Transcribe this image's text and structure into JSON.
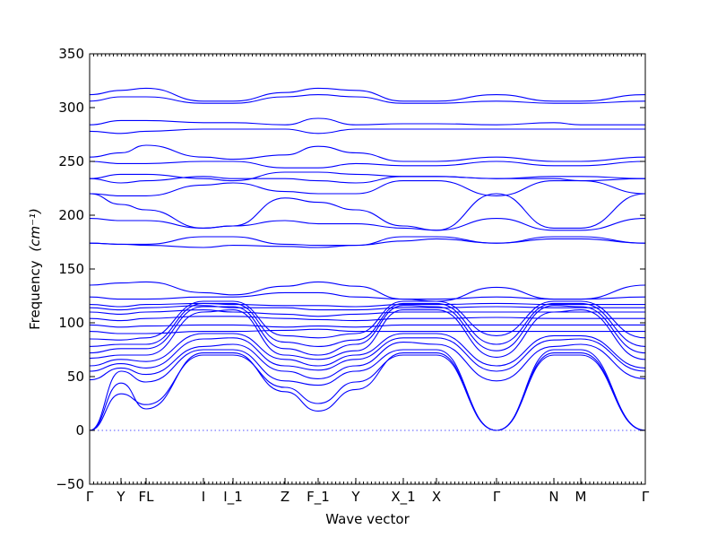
{
  "chart_data": {
    "type": "line",
    "title": "",
    "xlabel": "Wave vector",
    "ylabel": "Frequency",
    "ylabel_unit": "(cm⁻¹)",
    "ylim": [
      -50,
      350
    ],
    "yticks": [
      -50,
      0,
      50,
      100,
      150,
      200,
      250,
      300,
      350
    ],
    "high_symmetry_points": [
      {
        "label": "Γ",
        "x": 0.0
      },
      {
        "label": "Y",
        "x": 0.35
      },
      {
        "label": "FL",
        "x": 0.63
      },
      {
        "label": "I",
        "x": 1.27
      },
      {
        "label": "I_1",
        "x": 1.6
      },
      {
        "label": "Z",
        "x": 2.18
      },
      {
        "label": "F_1",
        "x": 2.55
      },
      {
        "label": "Y",
        "x": 2.97
      },
      {
        "label": "X_1",
        "x": 3.5
      },
      {
        "label": "X",
        "x": 3.87
      },
      {
        "label": "Γ",
        "x": 4.54
      },
      {
        "label": "N",
        "x": 5.18
      },
      {
        "label": "M",
        "x": 5.48
      },
      {
        "label": "Γ",
        "x": 6.2
      }
    ],
    "series": [
      {
        "x": [
          0,
          0.35,
          0.63,
          1.27,
          1.6,
          2.18,
          2.55,
          2.97,
          3.5,
          3.87,
          4.54,
          5.18,
          5.48,
          6.2
        ],
        "values": [
          0,
          44,
          20,
          72,
          72,
          36,
          18,
          38,
          72,
          72,
          0,
          72,
          72,
          0
        ]
      },
      {
        "x": [
          0,
          0.35,
          0.63,
          1.27,
          1.6,
          2.18,
          2.55,
          2.97,
          3.5,
          3.87,
          4.54,
          5.18,
          5.48,
          6.2
        ],
        "values": [
          0,
          34,
          24,
          70,
          70,
          40,
          25,
          45,
          70,
          70,
          0,
          70,
          70,
          0
        ]
      },
      {
        "x": [
          0,
          0.35,
          0.63,
          1.27,
          1.6,
          2.18,
          2.55,
          2.97,
          3.5,
          3.87,
          4.54,
          5.18,
          5.48,
          6.2
        ],
        "values": [
          0,
          55,
          45,
          75,
          75,
          46,
          42,
          55,
          75,
          75,
          0,
          75,
          75,
          0
        ]
      },
      {
        "x": [
          0,
          0.35,
          0.63,
          1.27,
          1.6,
          2.18,
          2.55,
          2.97,
          3.5,
          3.87,
          4.54,
          5.18,
          5.48,
          6.2
        ],
        "values": [
          47,
          58,
          52,
          78,
          80,
          55,
          48,
          60,
          82,
          80,
          46,
          78,
          80,
          48
        ]
      },
      {
        "x": [
          0,
          0.35,
          0.63,
          1.27,
          1.6,
          2.18,
          2.55,
          2.97,
          3.5,
          3.87,
          4.54,
          5.18,
          5.48,
          6.2
        ],
        "values": [
          55,
          62,
          58,
          85,
          86,
          60,
          56,
          66,
          86,
          86,
          55,
          84,
          85,
          55
        ]
      },
      {
        "x": [
          0,
          0.35,
          0.63,
          1.27,
          1.6,
          2.18,
          2.55,
          2.97,
          3.5,
          3.87,
          4.54,
          5.18,
          5.48,
          6.2
        ],
        "values": [
          60,
          66,
          64,
          90,
          90,
          66,
          60,
          70,
          90,
          90,
          60,
          88,
          88,
          58
        ]
      },
      {
        "x": [
          0,
          0.35,
          0.63,
          1.27,
          1.6,
          2.18,
          2.55,
          2.97,
          3.5,
          3.87,
          4.54,
          5.18,
          5.48,
          6.2
        ],
        "values": [
          67,
          70,
          70,
          110,
          112,
          70,
          66,
          74,
          112,
          112,
          68,
          110,
          112,
          66
        ]
      },
      {
        "x": [
          0,
          0.35,
          0.63,
          1.27,
          1.6,
          2.18,
          2.55,
          2.97,
          3.5,
          3.87,
          4.54,
          5.18,
          5.48,
          6.2
        ],
        "values": [
          72,
          76,
          76,
          115,
          115,
          76,
          70,
          80,
          116,
          115,
          74,
          116,
          115,
          72
        ]
      },
      {
        "x": [
          0,
          0.35,
          0.63,
          1.27,
          1.6,
          2.18,
          2.55,
          2.97,
          3.5,
          3.87,
          4.54,
          5.18,
          5.48,
          6.2
        ],
        "values": [
          78,
          80,
          80,
          118,
          118,
          82,
          78,
          84,
          118,
          118,
          80,
          118,
          118,
          78
        ]
      },
      {
        "x": [
          0,
          0.35,
          0.63,
          1.27,
          1.6,
          2.18,
          2.55,
          2.97,
          3.5,
          3.87,
          4.54,
          5.18,
          5.48,
          6.2
        ],
        "values": [
          85,
          84,
          86,
          120,
          120,
          88,
          86,
          90,
          120,
          120,
          88,
          120,
          120,
          86
        ]
      },
      {
        "x": [
          0,
          0.35,
          0.63,
          1.27,
          1.6,
          2.18,
          2.55,
          2.97,
          3.5,
          3.87,
          4.54,
          5.18,
          5.48,
          6.2
        ],
        "values": [
          92,
          90,
          90,
          92,
          92,
          93,
          94,
          92,
          92,
          92,
          92,
          92,
          92,
          92
        ]
      },
      {
        "x": [
          0,
          0.35,
          0.63,
          1.27,
          1.6,
          2.18,
          2.55,
          2.97,
          3.5,
          3.87,
          4.54,
          5.18,
          5.48,
          6.2
        ],
        "values": [
          98,
          96,
          97,
          98,
          98,
          96,
          97,
          96,
          98,
          98,
          98,
          98,
          98,
          98
        ]
      },
      {
        "x": [
          0,
          0.35,
          0.63,
          1.27,
          1.6,
          2.18,
          2.55,
          2.97,
          3.5,
          3.87,
          4.54,
          5.18,
          5.48,
          6.2
        ],
        "values": [
          104,
          102,
          104,
          106,
          106,
          104,
          103,
          102,
          104,
          104,
          105,
          104,
          104,
          104
        ]
      },
      {
        "x": [
          0,
          0.35,
          0.63,
          1.27,
          1.6,
          2.18,
          2.55,
          2.97,
          3.5,
          3.87,
          4.54,
          5.18,
          5.48,
          6.2
        ],
        "values": [
          110,
          108,
          110,
          112,
          110,
          108,
          106,
          108,
          110,
          110,
          110,
          110,
          110,
          110
        ]
      },
      {
        "x": [
          0,
          0.35,
          0.63,
          1.27,
          1.6,
          2.18,
          2.55,
          2.97,
          3.5,
          3.87,
          4.54,
          5.18,
          5.48,
          6.2
        ],
        "values": [
          114,
          112,
          114,
          116,
          114,
          114,
          112,
          112,
          114,
          114,
          115,
          114,
          114,
          114
        ]
      },
      {
        "x": [
          0,
          0.35,
          0.63,
          1.27,
          1.6,
          2.18,
          2.55,
          2.97,
          3.5,
          3.87,
          4.54,
          5.18,
          5.48,
          6.2
        ],
        "values": [
          117,
          115,
          117,
          118,
          117,
          116,
          116,
          115,
          117,
          117,
          118,
          117,
          117,
          117
        ]
      },
      {
        "x": [
          0,
          0.35,
          0.63,
          1.27,
          1.6,
          2.18,
          2.55,
          2.97,
          3.5,
          3.87,
          4.54,
          5.18,
          5.48,
          6.2
        ],
        "values": [
          124,
          122,
          122,
          124,
          124,
          128,
          128,
          124,
          122,
          122,
          124,
          122,
          122,
          124
        ]
      },
      {
        "x": [
          0,
          0.35,
          0.63,
          1.27,
          1.6,
          2.18,
          2.55,
          2.97,
          3.5,
          3.87,
          4.54,
          5.18,
          5.48,
          6.2
        ],
        "values": [
          135,
          137,
          138,
          128,
          126,
          134,
          138,
          134,
          122,
          120,
          133,
          122,
          122,
          135
        ]
      },
      {
        "x": [
          0,
          0.35,
          0.63,
          1.27,
          1.6,
          2.18,
          2.55,
          2.97,
          3.5,
          3.87,
          4.54,
          5.18,
          5.48,
          6.2
        ],
        "values": [
          174,
          173,
          173,
          180,
          180,
          173,
          172,
          172,
          180,
          180,
          174,
          180,
          180,
          174
        ]
      },
      {
        "x": [
          0,
          0.35,
          0.63,
          1.27,
          1.6,
          2.18,
          2.55,
          2.97,
          3.5,
          3.87,
          4.54,
          5.18,
          5.48,
          6.2
        ],
        "values": [
          174,
          173,
          172,
          170,
          172,
          171,
          170,
          172,
          176,
          178,
          174,
          178,
          178,
          174
        ]
      },
      {
        "x": [
          0,
          0.35,
          0.63,
          1.27,
          1.6,
          2.18,
          2.55,
          2.97,
          3.5,
          3.87,
          4.54,
          5.18,
          5.48,
          6.2
        ],
        "values": [
          197,
          195,
          195,
          188,
          190,
          195,
          192,
          192,
          188,
          186,
          197,
          186,
          186,
          197
        ]
      },
      {
        "x": [
          0,
          0.35,
          0.63,
          1.27,
          1.6,
          2.18,
          2.55,
          2.97,
          3.5,
          3.87,
          4.54,
          5.18,
          5.48,
          6.2
        ],
        "values": [
          220,
          210,
          205,
          188,
          190,
          216,
          212,
          205,
          190,
          186,
          220,
          188,
          188,
          220
        ]
      },
      {
        "x": [
          0,
          0.35,
          0.63,
          1.27,
          1.6,
          2.18,
          2.55,
          2.97,
          3.5,
          3.87,
          4.54,
          5.18,
          5.48,
          6.2
        ],
        "values": [
          220,
          218,
          218,
          228,
          230,
          222,
          220,
          220,
          232,
          232,
          218,
          232,
          232,
          220
        ]
      },
      {
        "x": [
          0,
          0.35,
          0.63,
          1.27,
          1.6,
          2.18,
          2.55,
          2.97,
          3.5,
          3.87,
          4.54,
          5.18,
          5.48,
          6.2
        ],
        "values": [
          234,
          230,
          232,
          236,
          234,
          234,
          232,
          230,
          236,
          236,
          234,
          234,
          232,
          234
        ]
      },
      {
        "x": [
          0,
          0.35,
          0.63,
          1.27,
          1.6,
          2.18,
          2.55,
          2.97,
          3.5,
          3.87,
          4.54,
          5.18,
          5.48,
          6.2
        ],
        "values": [
          234,
          238,
          238,
          234,
          232,
          240,
          240,
          238,
          236,
          236,
          234,
          236,
          236,
          234
        ]
      },
      {
        "x": [
          0,
          0.35,
          0.63,
          1.27,
          1.6,
          2.18,
          2.55,
          2.97,
          3.5,
          3.87,
          4.54,
          5.18,
          5.48,
          6.2
        ],
        "values": [
          250,
          248,
          248,
          250,
          250,
          244,
          244,
          248,
          246,
          246,
          250,
          246,
          246,
          250
        ]
      },
      {
        "x": [
          0,
          0.35,
          0.63,
          1.27,
          1.6,
          2.18,
          2.55,
          2.97,
          3.5,
          3.87,
          4.54,
          5.18,
          5.48,
          6.2
        ],
        "values": [
          254,
          258,
          265,
          254,
          252,
          256,
          264,
          258,
          250,
          250,
          254,
          250,
          250,
          254
        ]
      },
      {
        "x": [
          0,
          0.35,
          0.63,
          1.27,
          1.6,
          2.18,
          2.55,
          2.97,
          3.5,
          3.87,
          4.54,
          5.18,
          5.48,
          6.2
        ],
        "values": [
          278,
          276,
          278,
          280,
          280,
          280,
          276,
          280,
          280,
          280,
          280,
          280,
          280,
          280
        ]
      },
      {
        "x": [
          0,
          0.35,
          0.63,
          1.27,
          1.6,
          2.18,
          2.55,
          2.97,
          3.5,
          3.87,
          4.54,
          5.18,
          5.48,
          6.2
        ],
        "values": [
          284,
          288,
          288,
          286,
          286,
          284,
          290,
          284,
          285,
          285,
          284,
          286,
          284,
          284
        ]
      },
      {
        "x": [
          0,
          0.35,
          0.63,
          1.27,
          1.6,
          2.18,
          2.55,
          2.97,
          3.5,
          3.87,
          4.54,
          5.18,
          5.48,
          6.2
        ],
        "values": [
          306,
          310,
          310,
          304,
          304,
          310,
          312,
          310,
          304,
          304,
          306,
          304,
          304,
          306
        ]
      },
      {
        "x": [
          0,
          0.35,
          0.63,
          1.27,
          1.6,
          2.18,
          2.55,
          2.97,
          3.5,
          3.87,
          4.54,
          5.18,
          5.48,
          6.2
        ],
        "values": [
          312,
          316,
          318,
          306,
          306,
          314,
          318,
          316,
          306,
          306,
          312,
          306,
          306,
          312
        ]
      }
    ]
  }
}
